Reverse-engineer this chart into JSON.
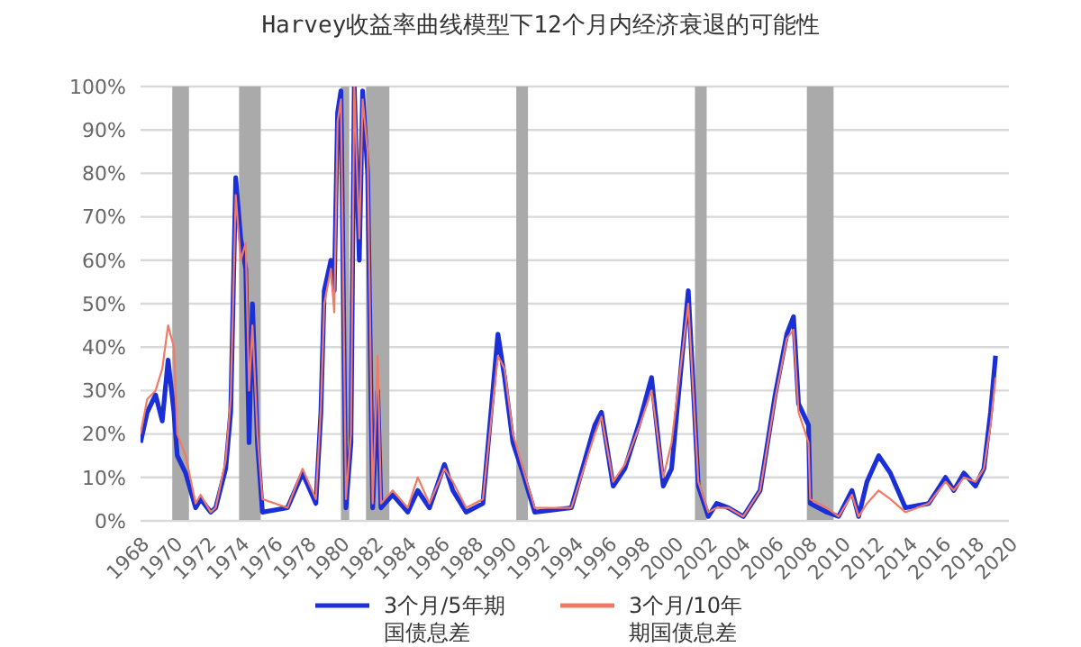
{
  "chart_data": {
    "type": "line",
    "title": "Harvey收益率曲线模型下12个月内经济衰退的可能性",
    "x": [
      1968.0,
      1968.4,
      1968.9,
      1969.3,
      1969.65,
      1970.0,
      1970.2,
      1970.7,
      1971.3,
      1971.6,
      1972.2,
      1972.5,
      1973.1,
      1973.4,
      1973.7,
      1974.0,
      1974.3,
      1974.5,
      1974.7,
      1975.0,
      1975.3,
      1976.8,
      1977.7,
      1978.5,
      1978.8,
      1979.0,
      1979.4,
      1979.6,
      1979.8,
      1980.0,
      1980.3,
      1980.6,
      1980.8,
      1981.1,
      1981.3,
      1981.6,
      1981.9,
      1982.2,
      1982.4,
      1983.1,
      1984.0,
      1984.6,
      1985.3,
      1986.2,
      1986.7,
      1987.5,
      1988.5,
      1989.4,
      1989.8,
      1990.3,
      1990.9,
      1991.6,
      1993.8,
      1995.2,
      1995.6,
      1996.3,
      1997.0,
      1997.9,
      1998.6,
      1999.3,
      1999.8,
      2000.8,
      2001.4,
      2002.0,
      2002.5,
      2003.2,
      2004.1,
      2005.1,
      2006.0,
      2006.7,
      2007.1,
      2007.4,
      2008.0,
      2008.1,
      2009.1,
      2009.8,
      2010.6,
      2011.0,
      2011.5,
      2012.2,
      2012.9,
      2013.8,
      2015.2,
      2016.2,
      2016.7,
      2017.3,
      2018.0,
      2018.5,
      2018.9,
      2019.2
    ],
    "series": [
      {
        "name": "3个月/5年期国债息差",
        "color": "#1a2fd6",
        "values": [
          18,
          25,
          29,
          23,
          37,
          25,
          15,
          11,
          3,
          5,
          2,
          3,
          12,
          25,
          79,
          65,
          58,
          18,
          50,
          18,
          2,
          3,
          11,
          4,
          25,
          53,
          60,
          53,
          94,
          99,
          3,
          18,
          100,
          60,
          99,
          80,
          3,
          30,
          3,
          6,
          2,
          7,
          3,
          13,
          7,
          2,
          4,
          43,
          33,
          18,
          11,
          2,
          3,
          22,
          25,
          8,
          12,
          23,
          33,
          8,
          12,
          53,
          8,
          1,
          4,
          3,
          1,
          7,
          29,
          43,
          47,
          27,
          22,
          4,
          2,
          1,
          7,
          1,
          9,
          15,
          11,
          3,
          4,
          10,
          7,
          11,
          8,
          12,
          25,
          38
        ]
      },
      {
        "name": "3个月/10年期国债息差",
        "color": "#f07a66",
        "values": [
          20,
          28,
          30,
          35,
          45,
          40,
          20,
          15,
          4,
          6,
          2,
          3,
          14,
          28,
          75,
          60,
          64,
          30,
          45,
          20,
          5,
          3,
          12,
          5,
          26,
          50,
          58,
          48,
          92,
          97,
          5,
          20,
          100,
          65,
          97,
          85,
          4,
          38,
          4,
          7,
          3,
          10,
          4,
          12,
          9,
          3,
          5,
          38,
          35,
          20,
          12,
          3,
          3,
          20,
          24,
          9,
          13,
          22,
          30,
          10,
          18,
          50,
          9,
          2,
          3,
          3,
          1,
          7,
          28,
          42,
          44,
          25,
          18,
          5,
          3,
          1,
          6,
          1,
          4,
          7,
          5,
          2,
          4,
          9,
          7,
          10,
          9,
          12,
          22,
          33
        ]
      }
    ],
    "xlim": [
      1968,
      2020
    ],
    "xticks": [
      1968,
      1970,
      1972,
      1974,
      1976,
      1978,
      1980,
      1982,
      1984,
      1986,
      1988,
      1990,
      1992,
      1994,
      1996,
      1998,
      2000,
      2002,
      2004,
      2006,
      2008,
      2010,
      2012,
      2014,
      2016,
      2018,
      2020
    ],
    "ylim": [
      0,
      100
    ],
    "yticks": [
      {
        "value": 0,
        "label": "0%"
      },
      {
        "value": 10,
        "label": "10%"
      },
      {
        "value": 20,
        "label": "20%"
      },
      {
        "value": 30,
        "label": "30%"
      },
      {
        "value": 40,
        "label": "40%"
      },
      {
        "value": 50,
        "label": "50%"
      },
      {
        "value": 60,
        "label": "60%"
      },
      {
        "value": 70,
        "label": "70%"
      },
      {
        "value": 80,
        "label": "80%"
      },
      {
        "value": 90,
        "label": "90%"
      },
      {
        "value": 100,
        "label": "100%"
      }
    ],
    "grid": "y",
    "legend": "bottom",
    "bands": [
      {
        "axis": "x",
        "from": 1969.9,
        "to": 1970.9,
        "color": "#aaaaaa"
      },
      {
        "axis": "x",
        "from": 1973.9,
        "to": 1975.2,
        "color": "#aaaaaa"
      },
      {
        "axis": "x",
        "from": 1980.0,
        "to": 1980.5,
        "color": "#aaaaaa"
      },
      {
        "axis": "x",
        "from": 1981.5,
        "to": 1982.9,
        "color": "#aaaaaa"
      },
      {
        "axis": "x",
        "from": 1990.5,
        "to": 1991.2,
        "color": "#aaaaaa"
      },
      {
        "axis": "x",
        "from": 2001.2,
        "to": 2001.9,
        "color": "#aaaaaa"
      },
      {
        "axis": "x",
        "from": 2007.9,
        "to": 2009.5,
        "color": "#aaaaaa"
      }
    ]
  }
}
